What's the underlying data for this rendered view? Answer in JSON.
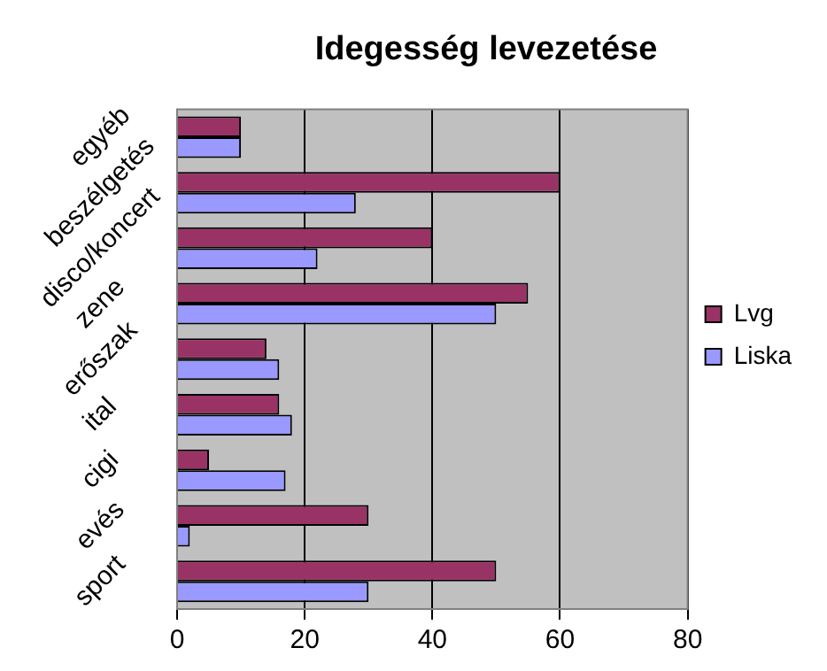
{
  "chart_data": {
    "type": "bar",
    "orientation": "horizontal",
    "title": "Idegesség levezetése",
    "categories": [
      "egyéb",
      "beszélgetés",
      "disco/koncert",
      "zene",
      "erőszak",
      "ital",
      "cigi",
      "evés",
      "sport"
    ],
    "series": [
      {
        "name": "Lvg",
        "color": "#993366",
        "values": [
          10,
          60,
          40,
          55,
          14,
          16,
          5,
          30,
          50
        ]
      },
      {
        "name": "Liska",
        "color": "#9999ff",
        "values": [
          10,
          28,
          22,
          50,
          16,
          18,
          17,
          2,
          30
        ]
      }
    ],
    "xlim": [
      0,
      80
    ],
    "xticks": [
      0,
      20,
      40,
      60,
      80
    ],
    "grid": "x",
    "legend": "right"
  }
}
